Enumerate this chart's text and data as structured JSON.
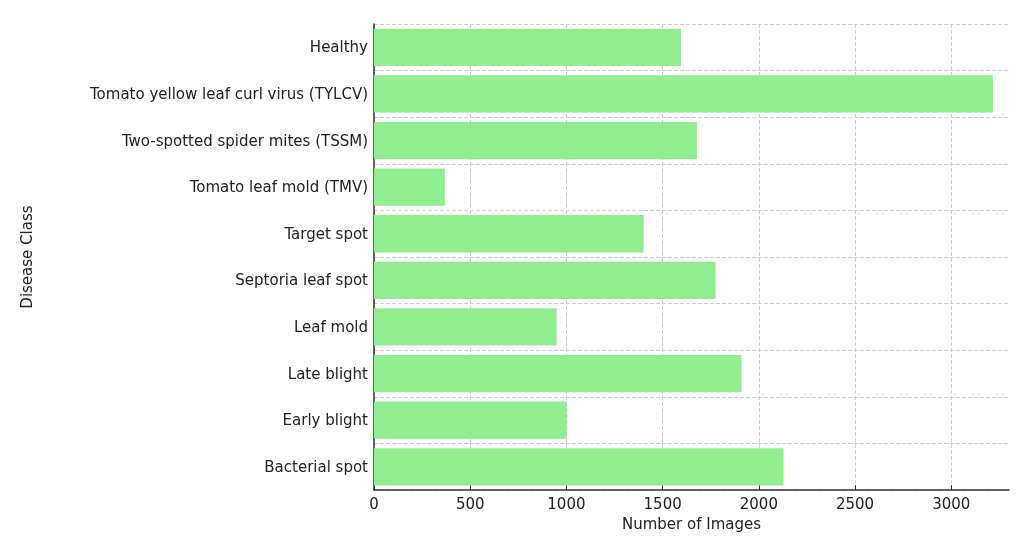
{
  "chart_data": {
    "type": "bar",
    "orientation": "horizontal",
    "xlabel": "Number of Images",
    "ylabel": "Disease Class",
    "categories": [
      "Healthy",
      "Tomato yellow leaf curl virus (TYLCV)",
      "Two-spotted spider mites (TSSM)",
      "Tomato leaf mold (TMV)",
      "Target spot",
      "Septoria leaf spot",
      "Leaf mold",
      "Late blight",
      "Early blight",
      "Bacterial spot"
    ],
    "values": [
      1595,
      3216,
      1678,
      368,
      1401,
      1775,
      949,
      1910,
      1000,
      2128
    ],
    "color": "#90ee90",
    "xlim": [
      0,
      3300
    ],
    "xticks": [
      0,
      500,
      1000,
      1500,
      2000,
      2500,
      3000
    ],
    "grid": true
  }
}
